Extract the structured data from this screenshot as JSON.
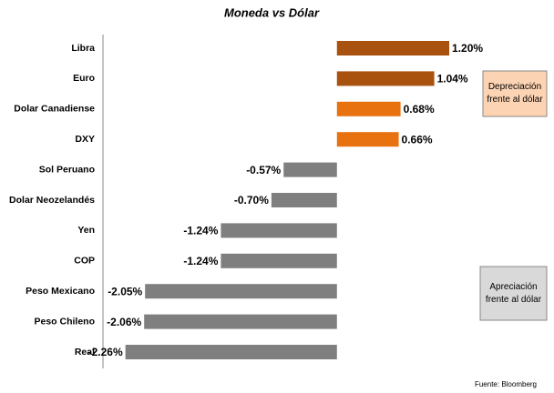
{
  "chart_data": {
    "type": "bar",
    "orientation": "horizontal",
    "title": "Moneda vs Dólar",
    "categories": [
      "Libra",
      "Euro",
      "Dolar Canadiense",
      "DXY",
      "Sol Peruano",
      "Dolar Neozelandés",
      "Yen",
      "COP",
      "Peso Mexicano",
      "Peso Chileno",
      "Real"
    ],
    "values": [
      1.2,
      1.04,
      0.68,
      0.66,
      -0.57,
      -0.7,
      -1.24,
      -1.24,
      -2.05,
      -2.06,
      -2.26
    ],
    "value_labels": [
      "1.20%",
      "1.04%",
      "0.68%",
      "0.66%",
      "-0.57%",
      "-0.70%",
      "-1.24%",
      "-1.24%",
      "-2.05%",
      "-2.06%",
      "-2.26%"
    ],
    "colors": [
      "#a9510f",
      "#a9510f",
      "#e8720f",
      "#e8720f",
      "#7f7f7f",
      "#7f7f7f",
      "#7f7f7f",
      "#7f7f7f",
      "#7f7f7f",
      "#7f7f7f",
      "#7f7f7f"
    ],
    "xlim": [
      -2.5,
      2.3
    ],
    "annotations": [
      "Depreciación frente al dólar",
      "Apreciación frente al dólar"
    ],
    "source": "Fuente: Bloomberg"
  }
}
